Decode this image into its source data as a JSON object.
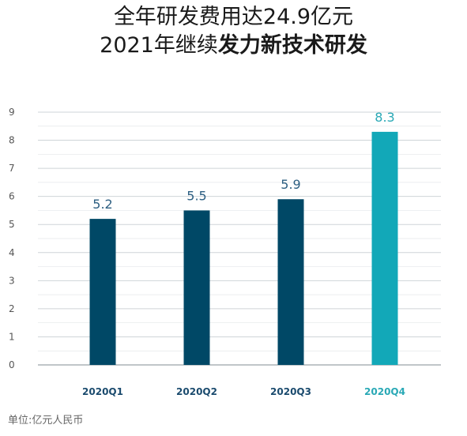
{
  "title": {
    "line1": "全年研发费用达24.9亿元",
    "line2_prefix": "2021年继续",
    "line2_bold": "发力新技术研发"
  },
  "unit_note": "单位:亿元人民币",
  "colors": {
    "primary_bar": "#004866",
    "highlight_bar": "#12a8b8",
    "primary_label": "#2d5f82",
    "highlight_label": "#2aa9b6",
    "grid": "#cfd4d8",
    "axis_text": "#555555",
    "category_primary": "#1b4b6e"
  },
  "chart_data": {
    "type": "bar",
    "categories": [
      "2020Q1",
      "2020Q2",
      "2020Q3",
      "2020Q4"
    ],
    "values": [
      5.2,
      5.5,
      5.9,
      8.3
    ],
    "data_labels": [
      "5.2",
      "5.5",
      "5.9",
      "8.3"
    ],
    "highlight_index": 3,
    "ylim": [
      0,
      9
    ],
    "yticks": [
      "0",
      "1",
      "2",
      "3",
      "4",
      "5",
      "6",
      "7",
      "8",
      "9"
    ],
    "grid": true,
    "title": "",
    "xlabel": "",
    "ylabel": ""
  }
}
